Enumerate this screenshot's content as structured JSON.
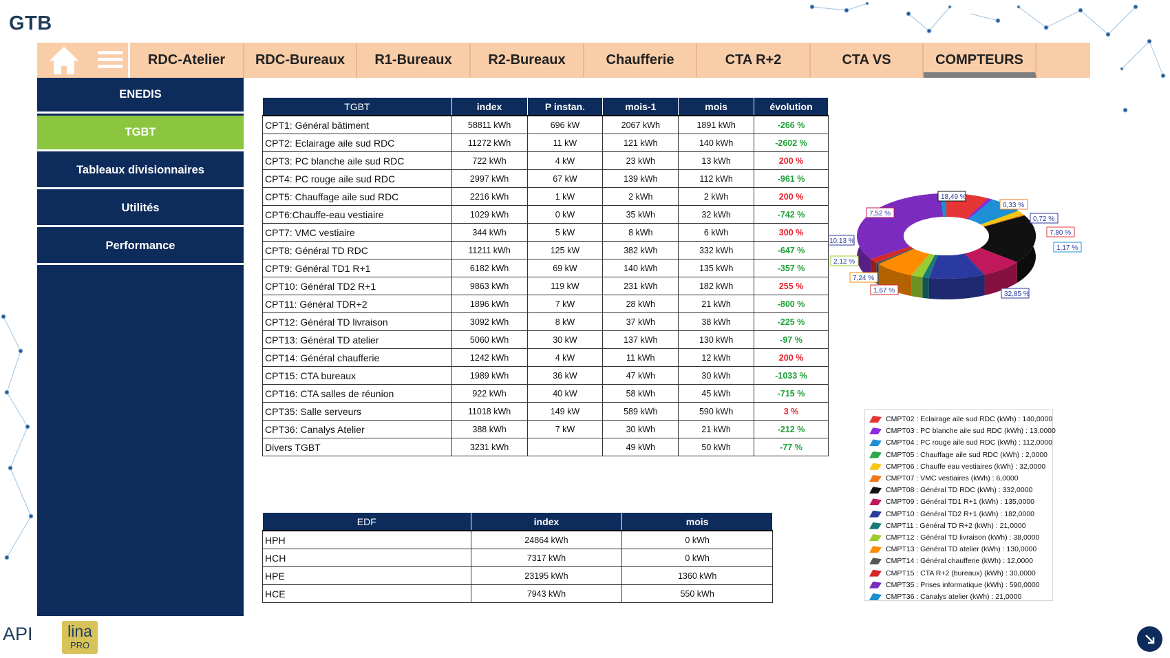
{
  "app": {
    "title": "GTB"
  },
  "nav": {
    "tabs": [
      {
        "label": "RDC-Atelier"
      },
      {
        "label": "RDC-Bureaux"
      },
      {
        "label": "R1-Bureaux"
      },
      {
        "label": "R2-Bureaux"
      },
      {
        "label": "Chaufferie"
      },
      {
        "label": "CTA R+2"
      },
      {
        "label": "CTA VS"
      },
      {
        "label": "COMPTEURS",
        "active": true
      }
    ]
  },
  "sidebar": {
    "items": [
      {
        "label": "ENEDIS"
      },
      {
        "label": "TGBT",
        "active": true
      },
      {
        "label": "Tableaux divisionnaires"
      },
      {
        "label": "Utilités"
      },
      {
        "label": "Performance"
      }
    ]
  },
  "tgbt_table": {
    "headers": [
      "TGBT",
      "index",
      "P instan.",
      "mois-1",
      "mois",
      "évolution"
    ],
    "rows": [
      [
        "CPT1: Général bâtiment",
        "58811 kWh",
        "696 kW",
        "2067 kWh",
        "1891 kWh",
        "-266 %"
      ],
      [
        "CPT2: Eclairage aile sud RDC",
        "11272 kWh",
        "11 kW",
        "121 kWh",
        "140 kWh",
        "-2602 %"
      ],
      [
        "CPT3: PC blanche aile sud RDC",
        "722 kWh",
        "4 kW",
        "23 kWh",
        "13 kWh",
        "200 %"
      ],
      [
        "CPT4: PC rouge aile sud RDC",
        "2997 kWh",
        "67 kW",
        "139 kWh",
        "112 kWh",
        "-961 %"
      ],
      [
        "CPT5: Chauffage aile sud RDC",
        "2216 kWh",
        "1 kW",
        "2 kWh",
        "2 kWh",
        "200 %"
      ],
      [
        "CPT6:Chauffe-eau vestiaire",
        "1029 kWh",
        "0 kW",
        "35 kWh",
        "32 kWh",
        "-742 %"
      ],
      [
        "CPT7: VMC vestiaire",
        "344 kWh",
        "5 kW",
        "8 kWh",
        "6 kWh",
        "300 %"
      ],
      [
        "CPT8: Général TD RDC",
        "11211 kWh",
        "125 kW",
        "382 kWh",
        "332 kWh",
        "-647 %"
      ],
      [
        "CPT9: Général TD1 R+1",
        "6182 kWh",
        "69 kW",
        "140 kWh",
        "135 kWh",
        "-357 %"
      ],
      [
        "CPT10: Général TD2 R+1",
        "9863 kWh",
        "119 kW",
        "231 kWh",
        "182 kWh",
        "255 %"
      ],
      [
        "CPT11: Général TDR+2",
        "1896 kWh",
        "7 kW",
        "28 kWh",
        "21 kWh",
        "-800 %"
      ],
      [
        "CPT12: Général TD livraison",
        "3092 kWh",
        "8 kW",
        "37 kWh",
        "38 kWh",
        "-225 %"
      ],
      [
        "CPT13: Général TD atelier",
        "5060 kWh",
        "30 kW",
        "137 kWh",
        "130 kWh",
        "-97 %"
      ],
      [
        "CPT14: Général chaufferie",
        "1242 kWh",
        "4 kW",
        "11 kWh",
        "12 kWh",
        "200 %"
      ],
      [
        "CPT15: CTA bureaux",
        "1989 kWh",
        "36 kW",
        "47 kWh",
        "30 kWh",
        "-1033 %"
      ],
      [
        "CPT16: CTA salles de réunion",
        "922 kWh",
        "40 kW",
        "58 kWh",
        "45 kWh",
        "-715 %"
      ],
      [
        "CPT35: Salle serveurs",
        "11018 kWh",
        "149 kW",
        "589 kWh",
        "590 kWh",
        "3 %"
      ],
      [
        "CPT36: Canalys Atelier",
        "388 kWh",
        "7 kW",
        "30 kWh",
        "21 kWh",
        "-212 %"
      ],
      [
        "Divers TGBT",
        "3231 kWh",
        "",
        "49 kWh",
        "50 kWh",
        "-77 %"
      ]
    ],
    "evolution_colors": {
      "positive": "#e8202a",
      "negative": "#1ea037"
    }
  },
  "edf_table": {
    "headers": [
      "EDF",
      "index",
      "mois"
    ],
    "rows": [
      [
        "HPH",
        "24864 kWh",
        "0 kWh"
      ],
      [
        "HCH",
        "7317 kWh",
        "0 kWh"
      ],
      [
        "HPE",
        "23195 kWh",
        "1360 kWh"
      ],
      [
        "HCE",
        "7943 kWh",
        "550 kWh"
      ]
    ]
  },
  "chart_data": {
    "type": "pie",
    "variant": "3d-donut",
    "slice_labels": [
      "32,85 %",
      "1,67 %",
      "7,24 %",
      "2,12 %",
      "10,13 %",
      "7,52 %",
      "18,49 %",
      "0,33 %",
      "0,72 %",
      "7,80 %",
      "1,17 %"
    ],
    "series": [
      {
        "name": "CMPT02 : Eclairage aile sud RDC (kWh) : 140,0000",
        "value": 140,
        "color": "#e53535"
      },
      {
        "name": "CMPT03 : PC blanche aile sud RDC (kWh) : 13,0000",
        "value": 13,
        "color": "#8a2be2"
      },
      {
        "name": "CMPT04 : PC rouge aile sud RDC (kWh) : 112,0000",
        "value": 112,
        "color": "#1e90d8"
      },
      {
        "name": "CMPT05 : Chauffage aile sud RDC (kWh) : 2,0000",
        "value": 2,
        "color": "#2aa84a"
      },
      {
        "name": "CMPT06 : Chauffe eau vestiaires (kWh) : 32,0000",
        "value": 32,
        "color": "#f5c518"
      },
      {
        "name": "CMPT07 : VMC vestiaires (kWh) : 6,0000",
        "value": 6,
        "color": "#f07a1a"
      },
      {
        "name": "CMPT08 : Général TD RDC (kWh) : 332,0000",
        "value": 332,
        "color": "#111111"
      },
      {
        "name": "CMPT09 : Général TD1 R+1 (kWh) : 135,0000",
        "value": 135,
        "color": "#c0185a"
      },
      {
        "name": "CMPT10 : Général TD2 R+1 (kWh) : 182,0000",
        "value": 182,
        "color": "#2b3aa0"
      },
      {
        "name": "CMPT11 : Général TD R+2 (kWh) : 21,0000",
        "value": 21,
        "color": "#1a7a7a"
      },
      {
        "name": "CMPT12 : Général TD livraison (kWh) : 38,0000",
        "value": 38,
        "color": "#9acd32"
      },
      {
        "name": "CMPT13 : Général TD atelier (kWh) : 130,0000",
        "value": 130,
        "color": "#ff8c00"
      },
      {
        "name": "CMPT14 : Général chaufferie (kWh) : 12,0000",
        "value": 12,
        "color": "#555555"
      },
      {
        "name": "CMPT15 : CTA R+2 (bureaux) (kWh) : 30,0000",
        "value": 30,
        "color": "#d62828"
      },
      {
        "name": "CMPT35 : Prises informatique (kWh) : 590,0000",
        "value": 590,
        "color": "#7b2cbf"
      },
      {
        "name": "CMPT36 : Canalys atelier (kWh) : 21,0000",
        "value": 21,
        "color": "#1c8fd0"
      }
    ],
    "legend_position": "bottom-right"
  },
  "footer": {
    "logo_api": "API",
    "logo_lina": "lina",
    "logo_pro": "PRO"
  }
}
